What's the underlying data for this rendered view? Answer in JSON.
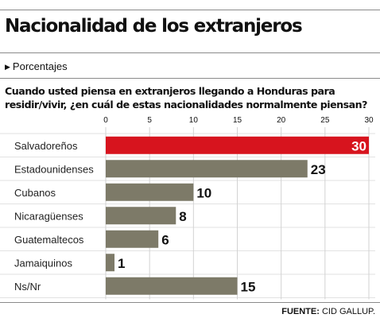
{
  "title": "Nacionalidad de los extranjeros",
  "subtitle": "Porcentajes",
  "subtitle_icon": "triangle-right-icon",
  "question": "Cuando usted piensa en extranjeros llegando a Honduras para residir/vivir, ¿en cuál de estas nacionalidades normalmente piensan?",
  "source_label": "FUENTE:",
  "source_text": " CID GALLUP.",
  "colors": {
    "highlight": "#d7141e",
    "bar": "#7d7a68",
    "text": "#111111"
  },
  "chart_data": {
    "type": "bar",
    "orientation": "horizontal",
    "categories": [
      "Salvadoreños",
      "Estadounidenses",
      "Cubanos",
      "Nicaragüenses",
      "Guatemaltecos",
      "Jamaiquinos",
      "Ns/Nr"
    ],
    "values": [
      30,
      23,
      10,
      8,
      6,
      1,
      15
    ],
    "xlim": [
      0,
      30
    ],
    "xticks": [
      "0",
      "5",
      "10",
      "15",
      "20",
      "25",
      "30"
    ],
    "xtick_values": [
      0,
      5,
      10,
      15,
      20,
      25,
      30
    ],
    "highlight_index": 0,
    "grid": true,
    "xticks_position": "top"
  }
}
